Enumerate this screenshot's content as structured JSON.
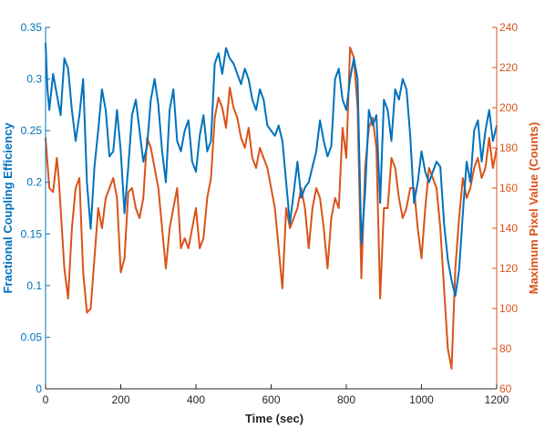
{
  "chart_data": {
    "type": "line",
    "xlabel": "Time (sec)",
    "ylabel_left": "Fractional Coupling Efficiency",
    "ylabel_right": "Maximum Pixel Value (Counts)",
    "xlim": [
      0,
      1200
    ],
    "ylim_left": [
      0,
      0.35
    ],
    "ylim_right": [
      60,
      240
    ],
    "x_ticks": [
      "0",
      "200",
      "400",
      "600",
      "800",
      "1000",
      "1200"
    ],
    "y_left_ticks": [
      "0",
      "0.05",
      "0.1",
      "0.15",
      "0.2",
      "0.25",
      "0.3",
      "0.35"
    ],
    "y_right_ticks": [
      "60",
      "80",
      "100",
      "120",
      "140",
      "160",
      "180",
      "200",
      "220",
      "240"
    ],
    "grid": false,
    "colors": {
      "left_axis": "#0072BD",
      "right_axis": "#D95319",
      "text": "#262626"
    },
    "series": [
      {
        "axis": "left",
        "x": [
          0,
          5,
          10,
          20,
          30,
          40,
          50,
          60,
          70,
          80,
          90,
          100,
          110,
          120,
          130,
          140,
          150,
          160,
          170,
          180,
          190,
          200,
          210,
          220,
          230,
          240,
          250,
          260,
          270,
          280,
          290,
          300,
          310,
          320,
          330,
          340,
          350,
          360,
          370,
          380,
          390,
          400,
          410,
          420,
          430,
          440,
          450,
          460,
          470,
          480,
          490,
          500,
          510,
          520,
          530,
          540,
          550,
          560,
          570,
          580,
          590,
          600,
          610,
          620,
          630,
          640,
          650,
          660,
          670,
          680,
          690,
          700,
          710,
          720,
          730,
          740,
          750,
          760,
          770,
          780,
          790,
          800,
          810,
          820,
          830,
          840,
          850,
          860,
          870,
          880,
          890,
          900,
          910,
          920,
          930,
          940,
          950,
          960,
          970,
          980,
          990,
          1000,
          1010,
          1020,
          1030,
          1040,
          1050,
          1060,
          1070,
          1080,
          1090,
          1100,
          1110,
          1120,
          1130,
          1140,
          1150,
          1160,
          1170,
          1180,
          1190,
          1200
        ],
        "values": [
          0.335,
          0.29,
          0.27,
          0.305,
          0.285,
          0.265,
          0.32,
          0.31,
          0.27,
          0.24,
          0.265,
          0.3,
          0.2,
          0.155,
          0.215,
          0.25,
          0.29,
          0.27,
          0.225,
          0.23,
          0.27,
          0.23,
          0.17,
          0.215,
          0.265,
          0.28,
          0.25,
          0.22,
          0.235,
          0.28,
          0.3,
          0.275,
          0.23,
          0.2,
          0.27,
          0.29,
          0.24,
          0.23,
          0.25,
          0.26,
          0.22,
          0.21,
          0.245,
          0.265,
          0.23,
          0.24,
          0.315,
          0.325,
          0.305,
          0.33,
          0.32,
          0.315,
          0.305,
          0.295,
          0.31,
          0.3,
          0.28,
          0.27,
          0.29,
          0.28,
          0.255,
          0.25,
          0.245,
          0.255,
          0.24,
          0.2,
          0.16,
          0.19,
          0.22,
          0.185,
          0.195,
          0.2,
          0.215,
          0.23,
          0.26,
          0.24,
          0.225,
          0.235,
          0.3,
          0.31,
          0.28,
          0.27,
          0.3,
          0.32,
          0.3,
          0.14,
          0.19,
          0.27,
          0.255,
          0.265,
          0.18,
          0.28,
          0.27,
          0.24,
          0.29,
          0.28,
          0.3,
          0.29,
          0.245,
          0.18,
          0.2,
          0.23,
          0.21,
          0.2,
          0.21,
          0.22,
          0.215,
          0.16,
          0.125,
          0.105,
          0.09,
          0.115,
          0.17,
          0.22,
          0.2,
          0.25,
          0.26,
          0.22,
          0.25,
          0.27,
          0.24,
          0.255
        ]
      },
      {
        "axis": "right",
        "x": [
          0,
          10,
          20,
          30,
          35,
          40,
          50,
          60,
          70,
          80,
          90,
          100,
          110,
          120,
          130,
          140,
          150,
          160,
          170,
          180,
          190,
          200,
          210,
          220,
          230,
          240,
          250,
          260,
          270,
          280,
          290,
          300,
          310,
          320,
          330,
          340,
          350,
          360,
          370,
          380,
          390,
          400,
          410,
          420,
          430,
          440,
          450,
          460,
          470,
          480,
          490,
          500,
          510,
          520,
          530,
          540,
          550,
          560,
          570,
          580,
          590,
          600,
          610,
          620,
          630,
          640,
          650,
          660,
          670,
          680,
          690,
          700,
          710,
          720,
          730,
          740,
          750,
          760,
          770,
          780,
          790,
          800,
          810,
          820,
          830,
          840,
          850,
          860,
          870,
          880,
          890,
          900,
          910,
          920,
          930,
          940,
          950,
          960,
          970,
          980,
          990,
          1000,
          1010,
          1020,
          1030,
          1040,
          1050,
          1060,
          1070,
          1080,
          1090,
          1100,
          1110,
          1120,
          1130,
          1140,
          1150,
          1160,
          1170,
          1180,
          1190,
          1200
        ],
        "values": [
          185,
          160,
          158,
          175,
          165,
          150,
          120,
          105,
          140,
          160,
          165,
          118,
          98,
          100,
          125,
          150,
          140,
          155,
          160,
          165,
          155,
          118,
          125,
          158,
          160,
          150,
          145,
          155,
          185,
          180,
          170,
          160,
          140,
          120,
          140,
          150,
          160,
          130,
          135,
          130,
          140,
          150,
          130,
          135,
          155,
          165,
          195,
          205,
          200,
          190,
          210,
          200,
          195,
          185,
          180,
          190,
          175,
          170,
          180,
          175,
          170,
          160,
          150,
          130,
          110,
          150,
          140,
          145,
          150,
          160,
          150,
          130,
          150,
          160,
          155,
          140,
          120,
          145,
          155,
          150,
          190,
          175,
          230,
          225,
          200,
          115,
          170,
          190,
          195,
          180,
          105,
          150,
          150,
          175,
          170,
          155,
          145,
          150,
          160,
          160,
          140,
          125,
          150,
          170,
          165,
          160,
          140,
          110,
          80,
          70,
          120,
          145,
          165,
          155,
          160,
          170,
          175,
          165,
          170,
          185,
          170,
          180
        ]
      }
    ]
  }
}
